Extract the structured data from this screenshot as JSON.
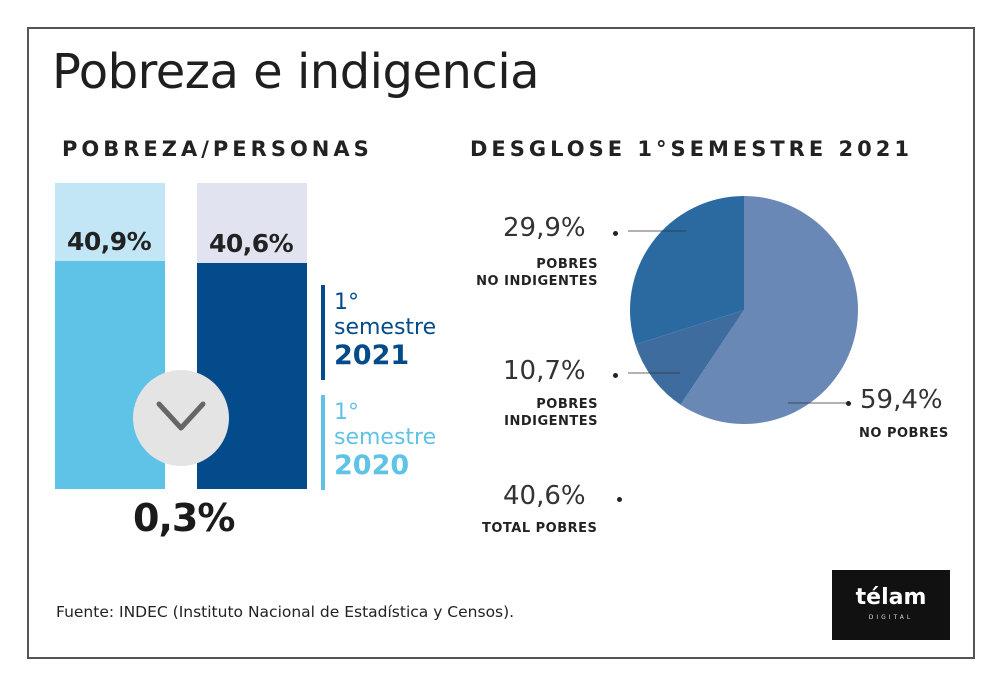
{
  "title": "Pobreza e indigencia",
  "left_subtitle": "POBREZA/PERSONAS",
  "right_subtitle": "DESGLOSE 1°SEMESTRE 2021",
  "colors": {
    "bar_2020": "#5ec3e6",
    "bar_2020_bg": "#c2e6f5",
    "bar_2021": "#034b8a",
    "bar_2021_bg": "#e1e4f0",
    "pie_no_pobres": "#6a88b6",
    "pie_no_indigentes": "#2b6aa1",
    "pie_indigentes": "#3e6c9f"
  },
  "legend": [
    {
      "line1": "1°",
      "line2": "semestre",
      "year": "2021",
      "color": "#034b8a"
    },
    {
      "line1": "1°",
      "line2": "semestre",
      "year": "2020",
      "color": "#5ec3e6"
    }
  ],
  "difference": {
    "value": "0,3%",
    "icon": "chevron-down-icon"
  },
  "chart_data": [
    {
      "type": "bar",
      "title": "POBREZA/PERSONAS",
      "categories": [
        "1° semestre 2020",
        "1° semestre 2021"
      ],
      "values": [
        40.9,
        40.6
      ],
      "labels": [
        "40,9%",
        "40,6%"
      ],
      "ylim": [
        0,
        55
      ]
    },
    {
      "type": "pie",
      "title": "DESGLOSE 1°SEMESTRE 2021",
      "slices": [
        {
          "name": "NO POBRES",
          "value": 59.4,
          "label": "59,4%"
        },
        {
          "name": "POBRES NO INDIGENTES",
          "name_line1": "POBRES",
          "name_line2": "NO INDIGENTES",
          "value": 29.9,
          "label": "29,9%"
        },
        {
          "name": "POBRES INDIGENTES",
          "name_line1": "POBRES",
          "name_line2": "INDIGENTES",
          "value": 10.7,
          "label": "10,7%"
        }
      ],
      "total": {
        "name": "TOTAL POBRES",
        "value": 40.6,
        "label": "40,6%"
      }
    }
  ],
  "source": "Fuente: INDEC (Instituto Nacional de Estadística y Censos).",
  "logo": {
    "text": "télam",
    "sub": "DIGITAL"
  }
}
